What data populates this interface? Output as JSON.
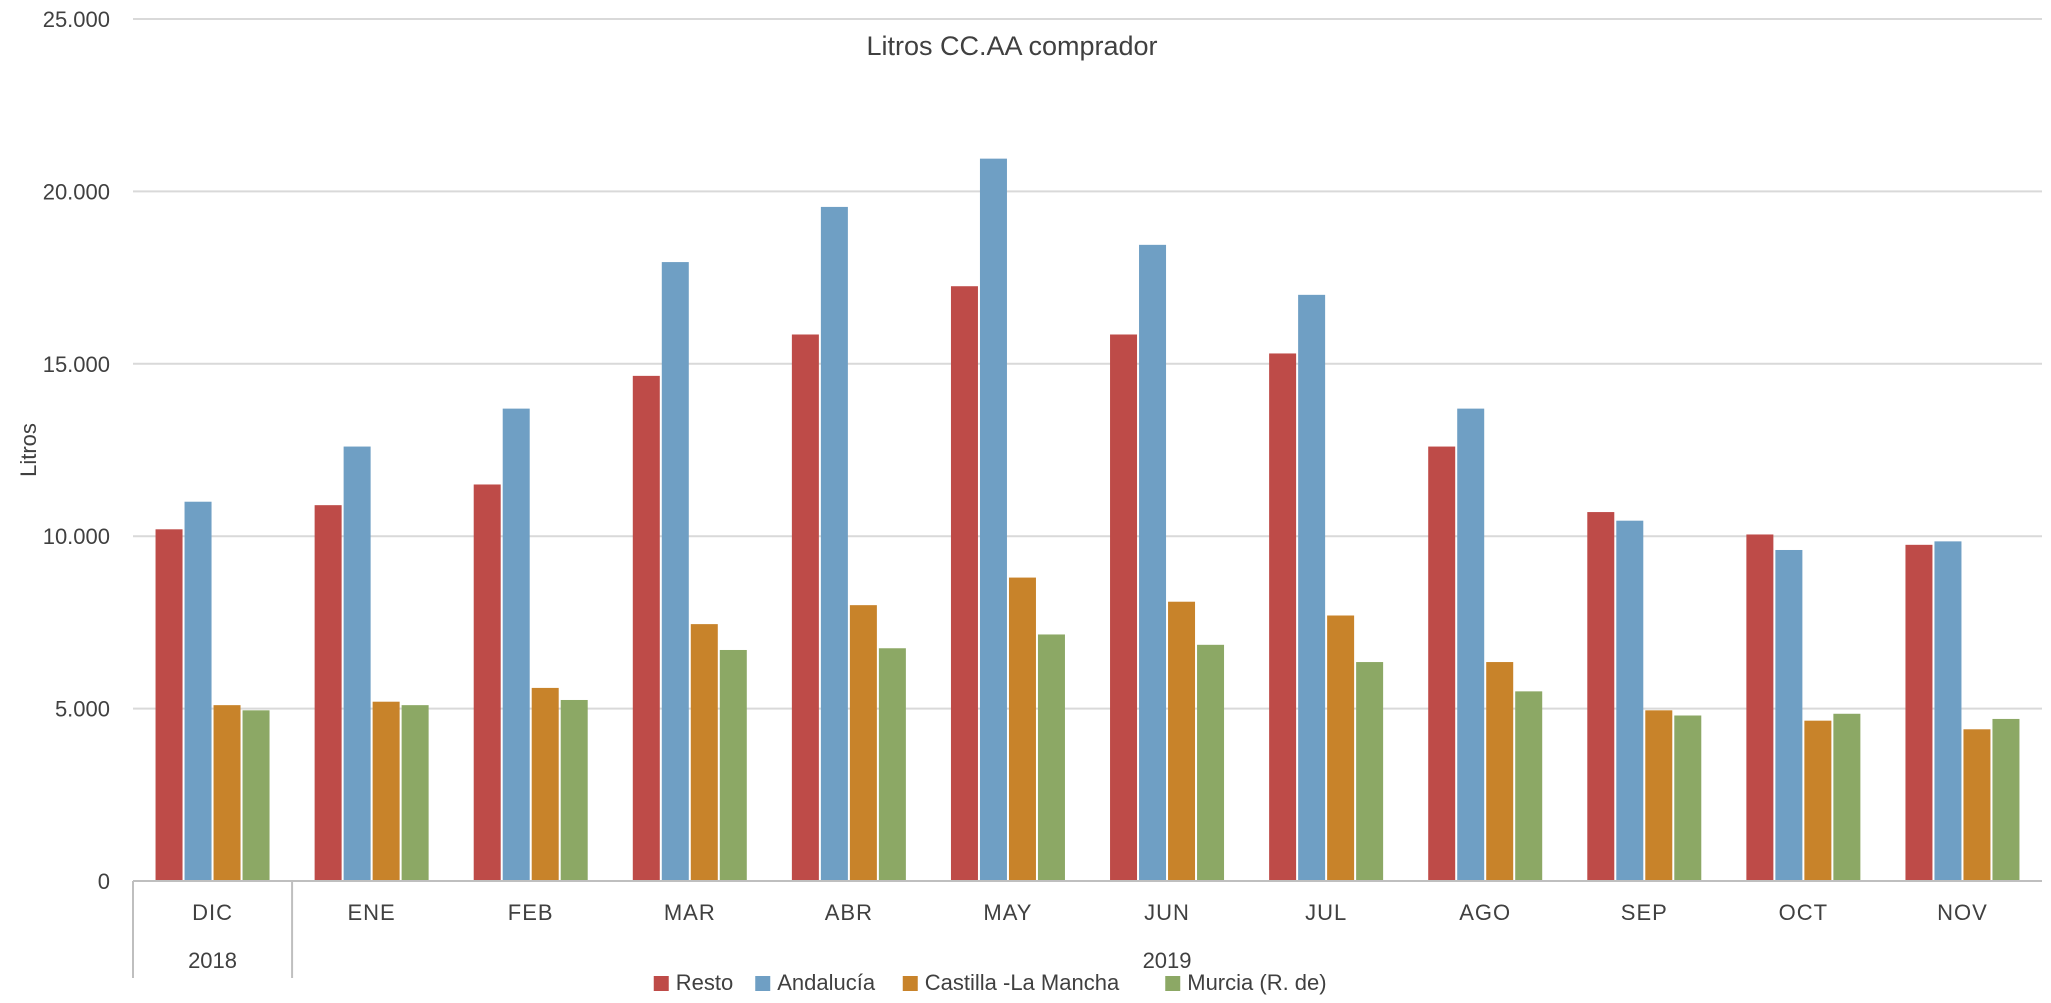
{
  "chart_data": {
    "type": "bar",
    "title": "Litros CC.AA comprador",
    "xlabel": "",
    "ylabel": "Litros",
    "ylim": [
      0,
      25000
    ],
    "yticks": [
      0,
      5000,
      10000,
      15000,
      20000,
      25000
    ],
    "ytick_labels": [
      "0",
      "5.000",
      "10.000",
      "15.000",
      "20.000",
      "25.000"
    ],
    "grid": true,
    "legend_position": "bottom",
    "categories": [
      "DIC",
      "ENE",
      "FEB",
      "MAR",
      "ABR",
      "MAY",
      "JUN",
      "JUL",
      "AGO",
      "SEP",
      "OCT",
      "NOV"
    ],
    "year_groups": [
      {
        "label": "2018",
        "start": 0,
        "end": 0
      },
      {
        "label": "2019",
        "start": 1,
        "end": 11
      }
    ],
    "series": [
      {
        "name": "Resto",
        "color": "#be4b48",
        "values": [
          10200,
          10900,
          11500,
          14650,
          15850,
          17250,
          15850,
          15300,
          12600,
          10700,
          10050,
          9750
        ]
      },
      {
        "name": "Andalucía",
        "color": "#6f9fc4",
        "values": [
          11000,
          12600,
          13700,
          17950,
          19550,
          20950,
          18450,
          17000,
          13700,
          10450,
          9600,
          9850
        ]
      },
      {
        "name": "Castilla -La Mancha",
        "color": "#c8832a",
        "values": [
          5100,
          5200,
          5600,
          7450,
          8000,
          8800,
          8100,
          7700,
          6350,
          4950,
          4650,
          4400
        ]
      },
      {
        "name": "Murcia (R. de)",
        "color": "#8ca865",
        "values": [
          4950,
          5100,
          5250,
          6700,
          6750,
          7150,
          6850,
          6350,
          5500,
          4800,
          4850,
          4700
        ]
      }
    ]
  }
}
